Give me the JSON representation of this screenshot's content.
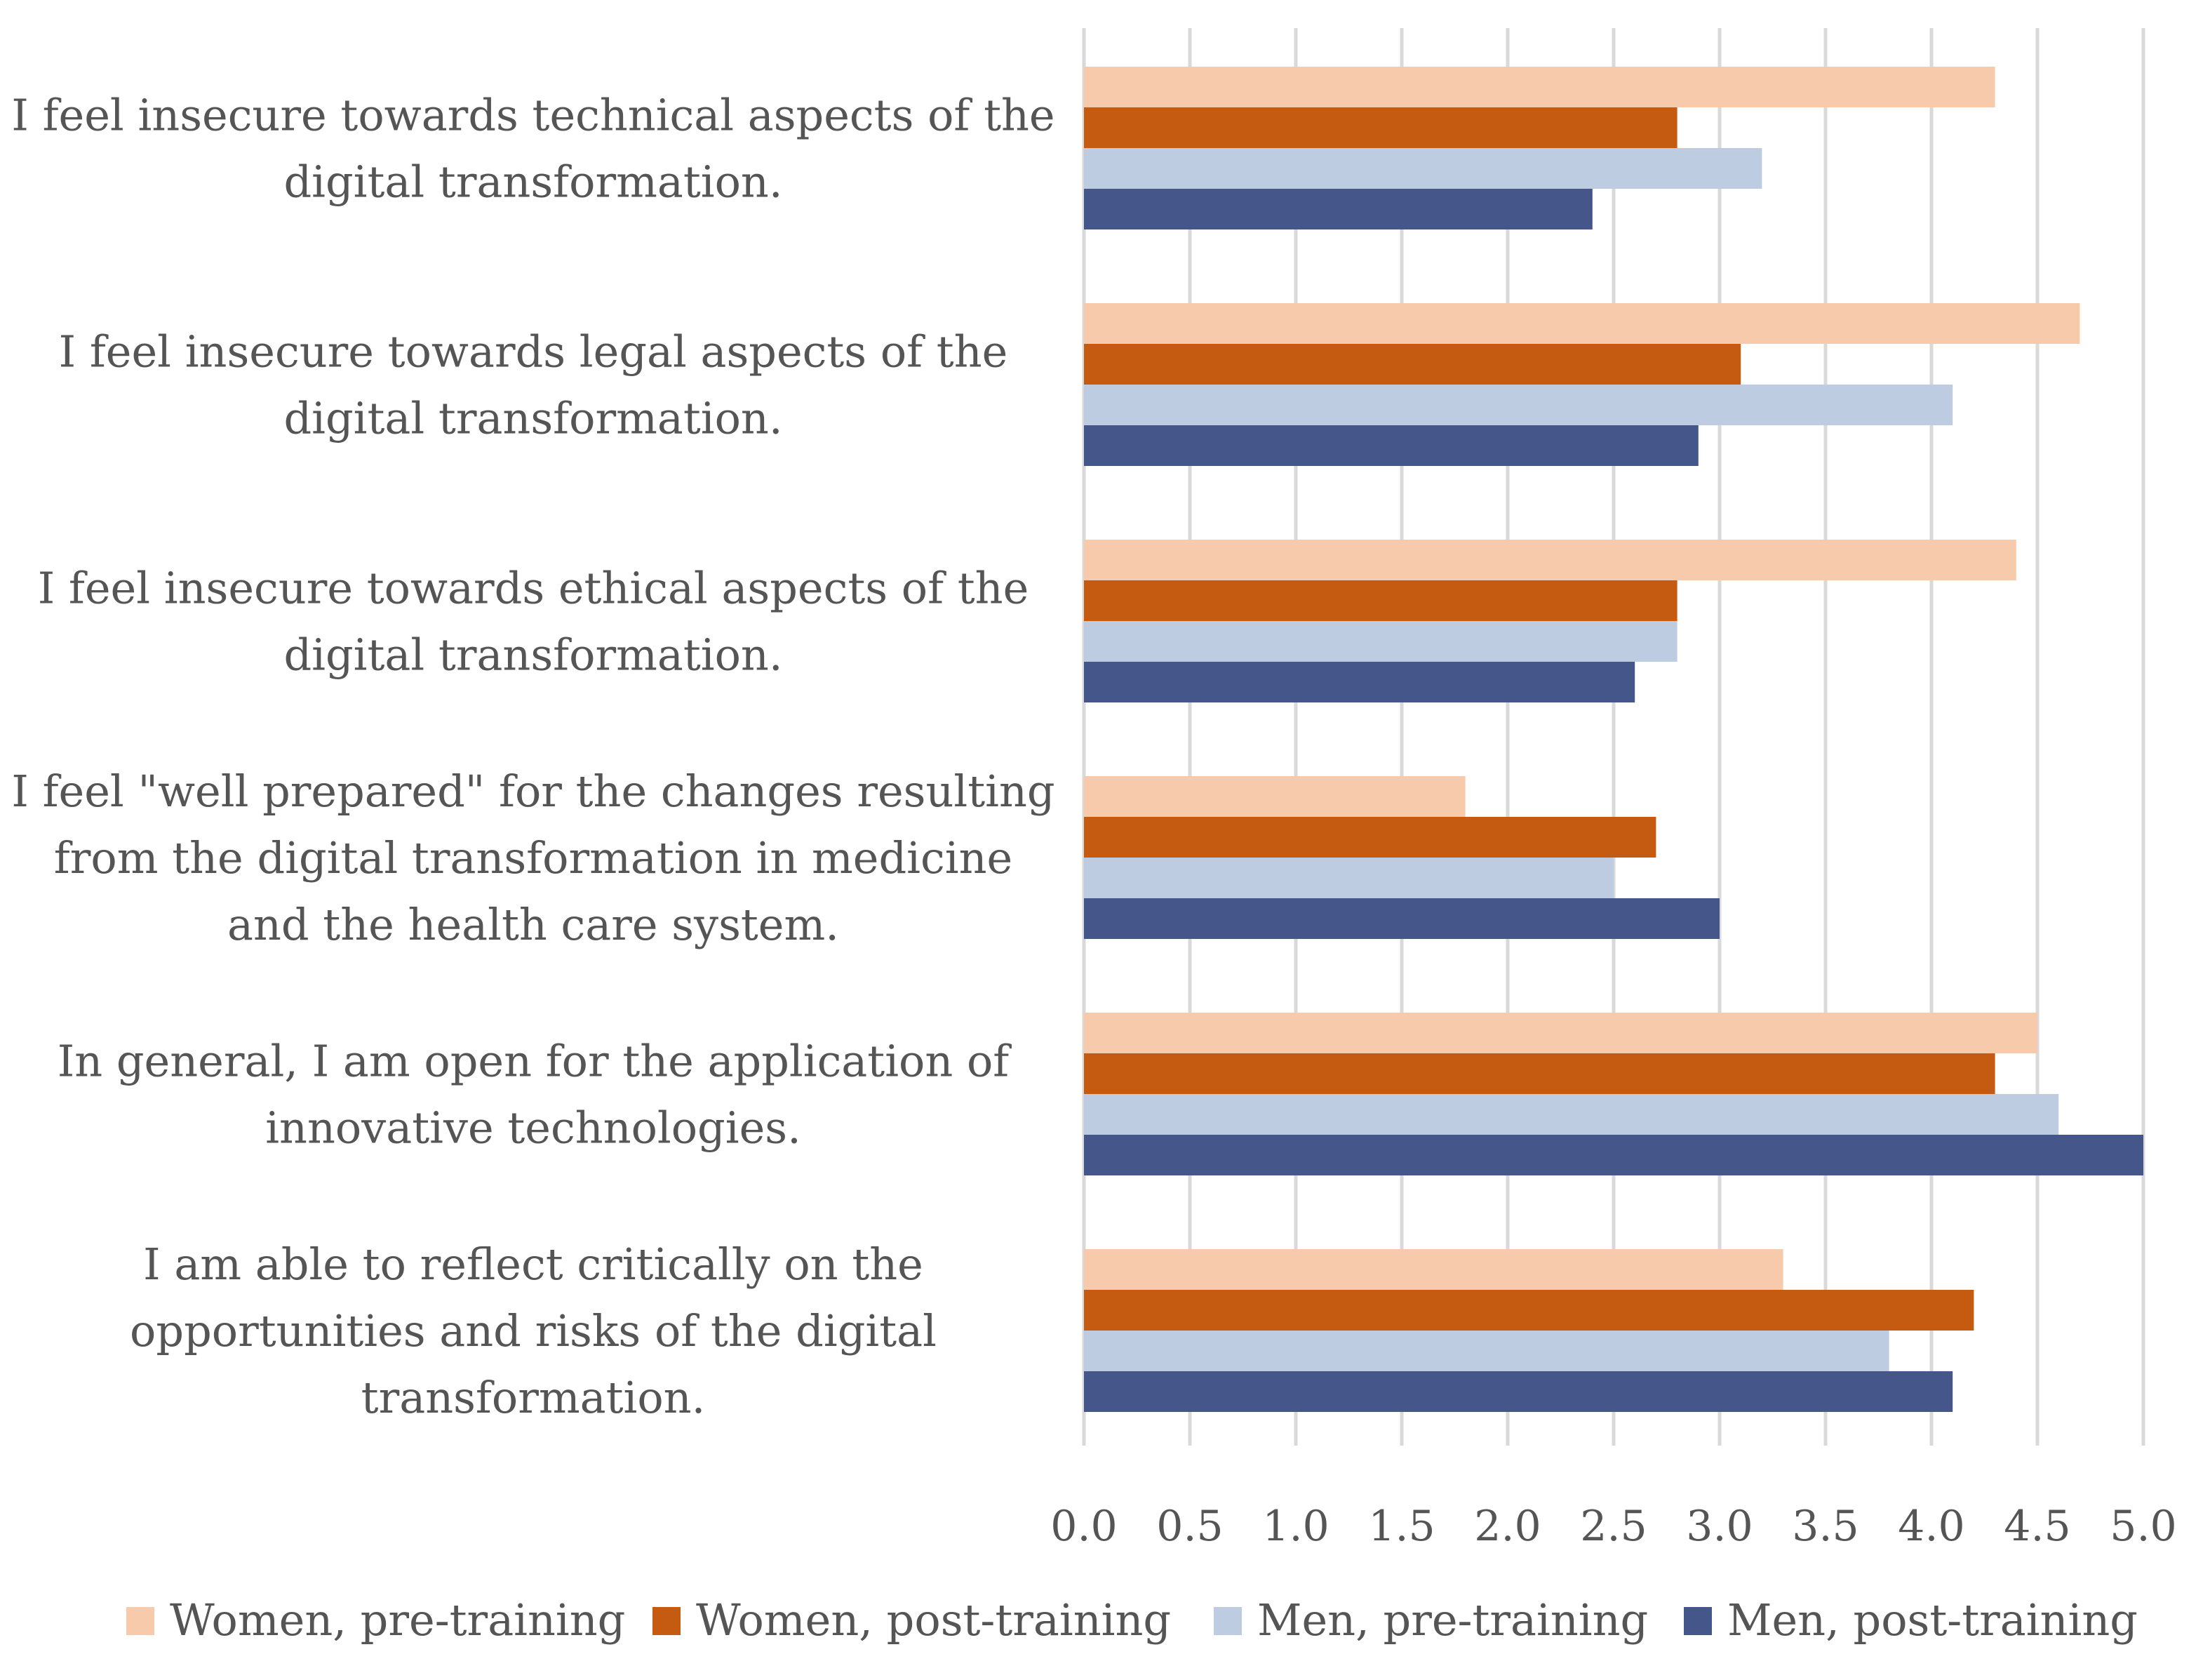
{
  "chart_data": {
    "type": "bar",
    "orientation": "horizontal",
    "title": "",
    "xlabel": "",
    "ylabel": "",
    "xlim": [
      0,
      5
    ],
    "x_ticks": [
      "0.0",
      "0.5",
      "1.0",
      "1.5",
      "2.0",
      "2.5",
      "3.0",
      "3.5",
      "4.0",
      "4.5",
      "5.0"
    ],
    "grid": true,
    "legend_position": "bottom",
    "categories": [
      [
        "I feel insecure towards technical aspects of the",
        "digital transformation."
      ],
      [
        "I feel insecure towards legal aspects of the",
        "digital transformation."
      ],
      [
        "I feel insecure towards ethical aspects of the",
        "digital transformation."
      ],
      [
        "I feel \"well prepared\" for the changes resulting",
        "from the digital transformation in medicine",
        "and the health care system."
      ],
      [
        "In general, I am open for the application of",
        "innovative technologies."
      ],
      [
        "I am able to reflect critically on the",
        "opportunities and risks of the digital",
        "transformation."
      ]
    ],
    "series": [
      {
        "name": "Women, pre-training",
        "color": "#F7CAAC",
        "values": [
          4.3,
          4.7,
          4.4,
          1.8,
          4.5,
          3.3
        ]
      },
      {
        "name": "Women, post-training",
        "color": "#C55A11",
        "values": [
          2.8,
          3.1,
          2.8,
          2.7,
          4.3,
          4.2
        ]
      },
      {
        "name": "Men, pre-training",
        "color": "#BDCCE0",
        "values": [
          3.2,
          4.1,
          2.8,
          2.5,
          4.6,
          3.8
        ]
      },
      {
        "name": "Men, post-training",
        "color": "#44568A",
        "values": [
          2.4,
          2.9,
          2.6,
          3.0,
          5.0,
          4.1
        ]
      }
    ]
  }
}
